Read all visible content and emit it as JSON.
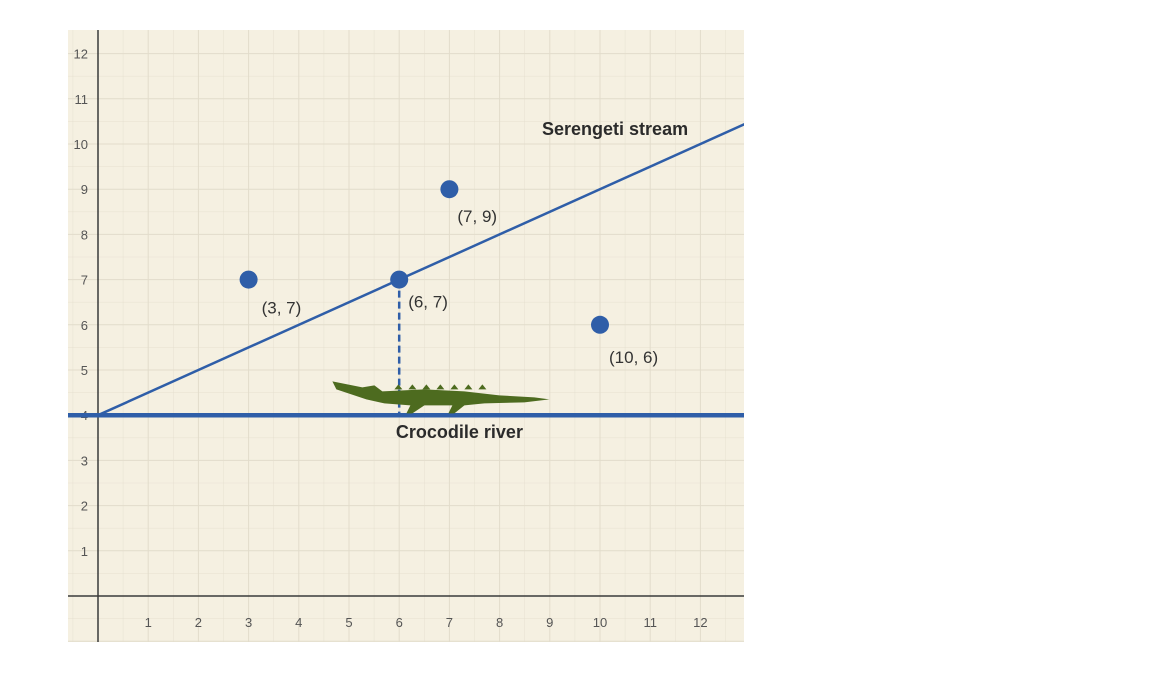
{
  "chart_data": {
    "type": "scatter",
    "title": "",
    "xlabel": "",
    "ylabel": "",
    "xlim": [
      0,
      12.9
    ],
    "ylim": [
      -1,
      12.4
    ],
    "grid": true,
    "x_ticks": [
      "1",
      "2",
      "3",
      "4",
      "5",
      "6",
      "7",
      "8",
      "9",
      "10",
      "11",
      "12"
    ],
    "y_ticks": [
      "1",
      "2",
      "3",
      "4",
      "5",
      "6",
      "7",
      "8",
      "9",
      "10",
      "11",
      "12"
    ],
    "points": [
      {
        "x": 3,
        "y": 7,
        "label": "(3, 7)"
      },
      {
        "x": 6,
        "y": 7,
        "label": "(6, 7)"
      },
      {
        "x": 7,
        "y": 9,
        "label": "(7, 9)"
      },
      {
        "x": 10,
        "y": 6,
        "label": "(10, 6)"
      }
    ],
    "lines": [
      {
        "name": "Serengeti stream",
        "x1": 0,
        "y1": 4,
        "x2": 12.9,
        "y2": 10.45
      },
      {
        "name": "Crocodile river",
        "x1": 0,
        "y1": 4,
        "x2": 12.9,
        "y2": 4
      }
    ],
    "dashed_segment": {
      "x1": 6,
      "y1": 7,
      "x2": 6,
      "y2": 4
    },
    "annotations": [
      "crocodile-icon"
    ],
    "colors": {
      "background": "#f5f0e1",
      "grid": "#e2dccb",
      "axis": "#3a3a3a",
      "series": "#2f5ea8",
      "crocodile": "#4d6b1f"
    }
  }
}
